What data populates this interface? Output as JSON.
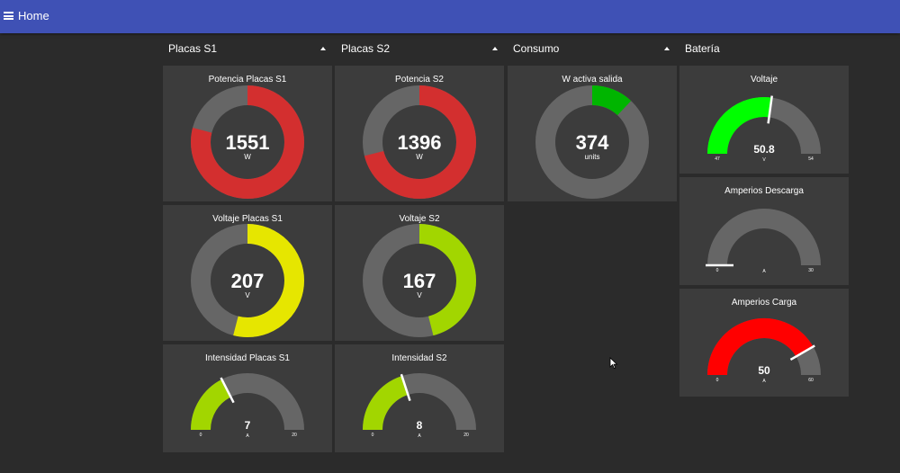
{
  "header": {
    "title": "Home"
  },
  "groups": [
    {
      "title": "Placas S1"
    },
    {
      "title": "Placas S2"
    },
    {
      "title": "Consumo"
    },
    {
      "title": "Batería"
    }
  ],
  "gauges": {
    "potencia_s1": {
      "label": "Potencia Placas S1",
      "value": "1551",
      "units": "W",
      "fraction": 0.79,
      "color": "#d32f2f"
    },
    "potencia_s2": {
      "label": "Potencia S2",
      "value": "1396",
      "units": "W",
      "fraction": 0.71,
      "color": "#d32f2f"
    },
    "w_activa": {
      "label": "W activa salida",
      "value": "374",
      "units": "units",
      "fraction": 0.12,
      "color": "#00b500"
    },
    "voltaje_s1": {
      "label": "Voltaje Placas S1",
      "value": "207",
      "units": "V",
      "fraction": 0.54,
      "color": "#e6e600"
    },
    "voltaje_s2": {
      "label": "Voltaje S2",
      "value": "167",
      "units": "V",
      "fraction": 0.46,
      "color": "#a2d600"
    },
    "intensidad_s1": {
      "label": "Intensidad Placas S1",
      "value": "7",
      "units": "A",
      "min": "0",
      "max": "20",
      "fraction": 0.35,
      "color": "#a2d600"
    },
    "intensidad_s2": {
      "label": "Intensidad S2",
      "value": "8",
      "units": "A",
      "min": "0",
      "max": "20",
      "fraction": 0.4,
      "color": "#a2d600"
    },
    "bat_voltaje": {
      "label": "Voltaje",
      "value": "50.8",
      "units": "V",
      "min": "47",
      "max": "54",
      "fraction": 0.543,
      "color": "#00ff00"
    },
    "amp_descarga": {
      "label": "Amperios Descarga",
      "value": "",
      "units": "A",
      "min": "0",
      "max": "30",
      "fraction": 0.0,
      "color": "#ffffff"
    },
    "amp_carga": {
      "label": "Amperios Carga",
      "value": "50",
      "units": "A",
      "min": "0",
      "max": "60",
      "fraction": 0.833,
      "color": "#ff0000"
    }
  },
  "colors": {
    "track": "#666666",
    "card": "#3c3c3c",
    "background": "#2b2b2b",
    "header": "#3f51b5"
  }
}
